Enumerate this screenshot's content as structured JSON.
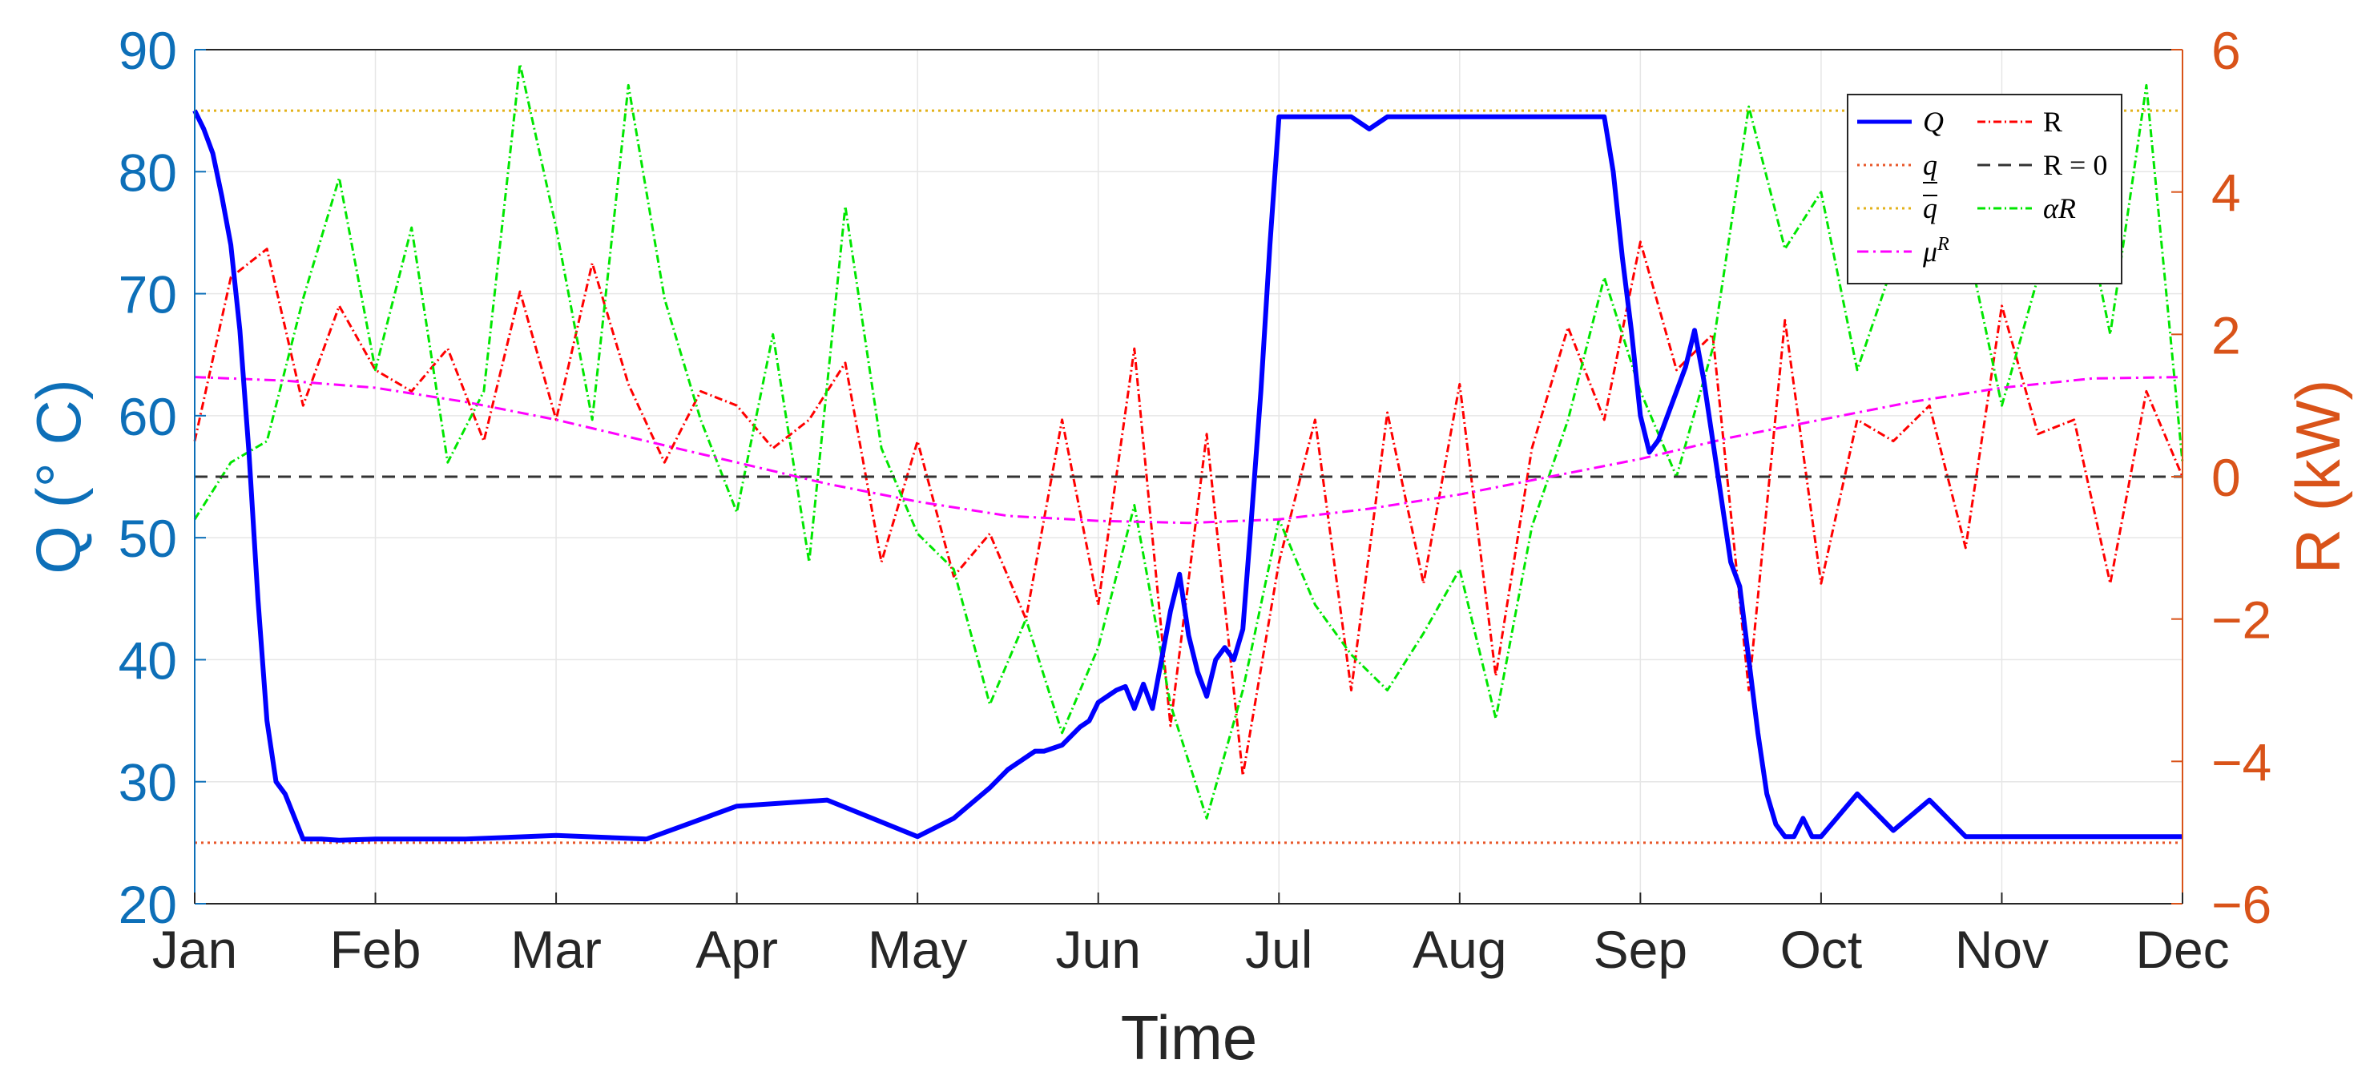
{
  "chart_data": {
    "type": "line",
    "xlabel": "Time",
    "ylabel_left": "Q (° C)",
    "ylabel_right": "R (kW)",
    "x_ticks": [
      "Jan",
      "Feb",
      "Mar",
      "Apr",
      "May",
      "Jun",
      "Jul",
      "Aug",
      "Sep",
      "Oct",
      "Nov",
      "Dec"
    ],
    "ylim_left": [
      20,
      90
    ],
    "ylim_right": [
      -6,
      6
    ],
    "y_ticks_left": [
      20,
      30,
      40,
      50,
      60,
      70,
      80,
      90
    ],
    "y_ticks_right": [
      -6,
      -4,
      -2,
      0,
      2,
      4,
      6
    ],
    "grid": true,
    "legend_position": "top-right",
    "colors": {
      "left_axis": "#0d6fb8",
      "right_axis": "#d95319",
      "Q": "#0000ff",
      "R": "#ff0000",
      "alphaR": "#00e600",
      "muR": "#ff00ff",
      "q_lower": "#e8572a",
      "q_upper": "#e3b21a",
      "R_zero": "#333333"
    },
    "legend": [
      {
        "key": "Q",
        "label": "Q"
      },
      {
        "key": "R",
        "label": "R"
      },
      {
        "key": "q_lower",
        "label": "q"
      },
      {
        "key": "R_zero",
        "label": "R = 0"
      },
      {
        "key": "q_upper",
        "label": "q"
      },
      {
        "key": "alphaR",
        "label": "αR"
      },
      {
        "key": "muR",
        "label": "μ",
        "sup": "R"
      }
    ],
    "series": [
      {
        "key": "Q",
        "axis": "left",
        "x": [
          0,
          0.05,
          0.1,
          0.15,
          0.2,
          0.25,
          0.3,
          0.35,
          0.4,
          0.45,
          0.5,
          0.6,
          0.7,
          0.8,
          1,
          1.5,
          2,
          2.5,
          3,
          3.5,
          4,
          4.2,
          4.4,
          4.5,
          4.55,
          4.6,
          4.65,
          4.7,
          4.8,
          4.9,
          4.95,
          5.0,
          5.05,
          5.1,
          5.15,
          5.2,
          5.25,
          5.3,
          5.35,
          5.4,
          5.45,
          5.5,
          5.55,
          5.6,
          5.65,
          5.7,
          5.75,
          5.8,
          5.85,
          5.9,
          5.95,
          6.0,
          6.2,
          6.4,
          6.5,
          6.6,
          6.8,
          7.0,
          7.2,
          7.4,
          7.6,
          7.8,
          7.85,
          7.9,
          7.95,
          8.0,
          8.05,
          8.1,
          8.15,
          8.2,
          8.25,
          8.3,
          8.35,
          8.4,
          8.45,
          8.5,
          8.55,
          8.6,
          8.65,
          8.7,
          8.75,
          8.8,
          8.85,
          8.9,
          8.95,
          9.0,
          9.2,
          9.4,
          9.6,
          9.8,
          10.0,
          10.5,
          11.0
        ],
        "y": [
          85,
          83.5,
          81.5,
          78,
          74,
          67,
          57,
          45,
          35,
          30,
          29,
          25.3,
          25.3,
          25.2,
          25.3,
          25.3,
          25.6,
          25.3,
          28,
          28.5,
          25.5,
          27,
          29.5,
          31,
          31.5,
          32,
          32.5,
          32.5,
          33,
          34.5,
          35,
          36.5,
          37,
          37.5,
          37.8,
          36,
          38,
          36,
          40,
          44,
          47,
          42,
          39,
          37,
          40,
          41,
          40,
          42.5,
          52,
          62,
          74,
          84.5,
          84.5,
          84.5,
          83.5,
          84.5,
          84.5,
          84.5,
          84.5,
          84.5,
          84.5,
          84.5,
          80,
          73,
          67,
          60,
          57,
          58,
          60,
          62,
          64,
          67,
          63,
          58,
          53,
          48,
          46,
          40,
          34,
          29,
          26.5,
          25.5,
          25.5,
          27,
          25.5,
          25.5,
          29,
          26,
          28.5,
          25.5,
          25.5,
          25.5,
          25.5
        ]
      },
      {
        "key": "R",
        "axis": "right",
        "x": [
          0,
          0.2,
          0.4,
          0.6,
          0.8,
          1.0,
          1.2,
          1.4,
          1.6,
          1.8,
          2.0,
          2.2,
          2.4,
          2.6,
          2.8,
          3.0,
          3.2,
          3.4,
          3.6,
          3.8,
          4.0,
          4.2,
          4.4,
          4.6,
          4.8,
          5.0,
          5.2,
          5.4,
          5.6,
          5.8,
          6.0,
          6.2,
          6.4,
          6.6,
          6.8,
          7.0,
          7.2,
          7.4,
          7.6,
          7.8,
          8.0,
          8.2,
          8.4,
          8.6,
          8.8,
          9.0,
          9.2,
          9.4,
          9.6,
          9.8,
          10.0,
          10.2,
          10.4,
          10.6,
          10.8,
          11.0
        ],
        "y": [
          0.5,
          2.8,
          3.2,
          1.0,
          2.4,
          1.5,
          1.2,
          1.8,
          0.5,
          2.6,
          0.8,
          3.0,
          1.3,
          0.2,
          1.2,
          1.0,
          0.4,
          0.8,
          1.6,
          -1.2,
          0.5,
          -1.4,
          -0.8,
          -2.0,
          0.8,
          -1.8,
          1.8,
          -3.5,
          0.6,
          -4.2,
          -1.2,
          0.8,
          -3.0,
          0.9,
          -1.5,
          1.3,
          -2.8,
          0.4,
          2.1,
          0.8,
          3.3,
          1.5,
          2.0,
          -3.0,
          2.2,
          -1.5,
          0.8,
          0.5,
          1.0,
          -1.0,
          2.4,
          0.6,
          0.8,
          -1.5,
          1.2,
          0.0
        ]
      },
      {
        "key": "alphaR",
        "axis": "right",
        "x": [
          0,
          0.2,
          0.4,
          0.6,
          0.8,
          1.0,
          1.2,
          1.4,
          1.6,
          1.8,
          2.0,
          2.2,
          2.4,
          2.6,
          2.8,
          3.0,
          3.2,
          3.4,
          3.6,
          3.8,
          4.0,
          4.2,
          4.4,
          4.6,
          4.8,
          5.0,
          5.2,
          5.4,
          5.6,
          5.8,
          6.0,
          6.2,
          6.4,
          6.6,
          6.8,
          7.0,
          7.2,
          7.4,
          7.6,
          7.8,
          8.0,
          8.2,
          8.4,
          8.6,
          8.8,
          9.0,
          9.2,
          9.4,
          9.6,
          9.8,
          10.0,
          10.2,
          10.4,
          10.6,
          10.8,
          11.0
        ],
        "y": [
          -0.6,
          0.2,
          0.5,
          2.5,
          4.2,
          1.5,
          3.5,
          0.2,
          1.2,
          5.8,
          3.5,
          0.8,
          5.5,
          2.5,
          0.8,
          -0.5,
          2.0,
          -1.2,
          3.8,
          0.4,
          -0.8,
          -1.3,
          -3.2,
          -2.0,
          -3.6,
          -2.4,
          -0.4,
          -3.2,
          -4.8,
          -3.0,
          -0.6,
          -1.8,
          -2.5,
          -3.0,
          -2.2,
          -1.3,
          -3.4,
          -0.7,
          0.8,
          2.8,
          1.2,
          0.0,
          1.8,
          5.2,
          3.2,
          4.0,
          1.5,
          3.0,
          5.0,
          3.4,
          1.0,
          2.8,
          4.5,
          2.0,
          5.5,
          0.2
        ]
      },
      {
        "key": "muR",
        "axis": "right",
        "x": [
          0,
          0.5,
          1.0,
          1.5,
          2.0,
          2.5,
          3.0,
          3.5,
          4.0,
          4.5,
          5.0,
          5.5,
          6.0,
          6.5,
          7.0,
          7.5,
          8.0,
          8.5,
          9.0,
          9.5,
          10.0,
          10.5,
          11.0
        ],
        "y": [
          1.4,
          1.35,
          1.25,
          1.05,
          0.8,
          0.5,
          0.2,
          -0.1,
          -0.35,
          -0.55,
          -0.62,
          -0.65,
          -0.6,
          -0.45,
          -0.25,
          0.0,
          0.25,
          0.55,
          0.8,
          1.05,
          1.25,
          1.38,
          1.4
        ]
      },
      {
        "key": "q_lower",
        "axis": "left",
        "x": [
          0,
          11
        ],
        "y": [
          25,
          25
        ]
      },
      {
        "key": "q_upper",
        "axis": "left",
        "x": [
          0,
          11
        ],
        "y": [
          85,
          85
        ]
      },
      {
        "key": "R_zero",
        "axis": "right",
        "x": [
          0,
          11
        ],
        "y": [
          0,
          0
        ]
      }
    ]
  }
}
